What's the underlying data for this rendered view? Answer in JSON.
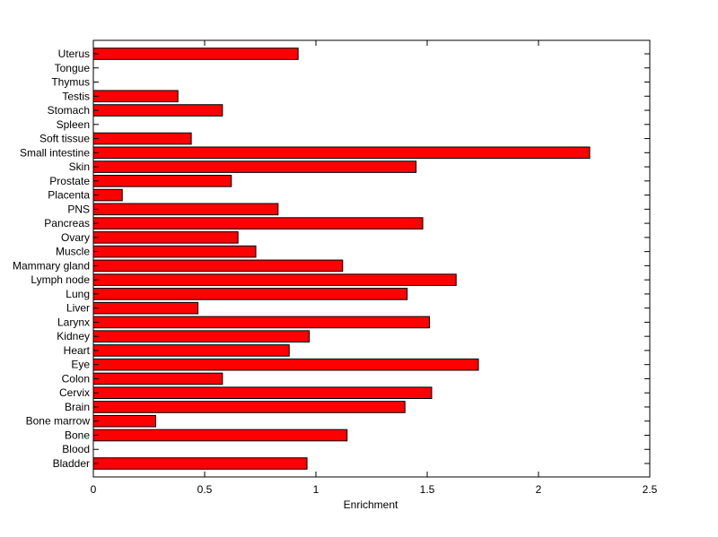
{
  "chart_data": {
    "type": "bar",
    "orientation": "horizontal",
    "title": "",
    "xlabel": "Enrichment",
    "ylabel": "",
    "xlim": [
      0,
      2.5
    ],
    "xticks": [
      0,
      0.5,
      1,
      1.5,
      2,
      2.5
    ],
    "xtick_labels": [
      "0",
      "0.5",
      "1",
      "1.5",
      "2",
      "2.5"
    ],
    "grid": false,
    "bar_color": "#ff0000",
    "bar_edge_color": "#000000",
    "categories": [
      "Bladder",
      "Blood",
      "Bone",
      "Bone marrow",
      "Brain",
      "Cervix",
      "Colon",
      "Eye",
      "Heart",
      "Kidney",
      "Larynx",
      "Liver",
      "Lung",
      "Lymph node",
      "Mammary gland",
      "Muscle",
      "Ovary",
      "Pancreas",
      "PNS",
      "Placenta",
      "Prostate",
      "Skin",
      "Small intestine",
      "Soft tissue",
      "Spleen",
      "Stomach",
      "Testis",
      "Thymus",
      "Tongue",
      "Uterus"
    ],
    "values": [
      0.96,
      0,
      1.14,
      0.28,
      1.4,
      1.52,
      0.58,
      1.73,
      0.88,
      0.97,
      1.51,
      0.47,
      1.41,
      1.63,
      1.12,
      0.73,
      0.65,
      1.48,
      0.83,
      0.13,
      0.62,
      1.45,
      2.23,
      0.44,
      0,
      0.58,
      0.38,
      0,
      0,
      0.92
    ]
  }
}
